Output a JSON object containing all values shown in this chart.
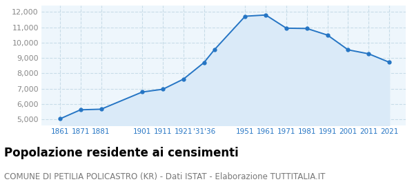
{
  "years": [
    1861,
    1871,
    1881,
    1901,
    1911,
    1921,
    1931,
    1936,
    1951,
    1961,
    1971,
    1981,
    1991,
    2001,
    2011,
    2021
  ],
  "population": [
    5030,
    5620,
    5660,
    6780,
    6960,
    7620,
    8700,
    9530,
    11720,
    11800,
    10940,
    10920,
    10490,
    9530,
    9270,
    8720
  ],
  "xtick_positions": [
    1861,
    1871,
    1881,
    1901,
    1911,
    1921,
    1931,
    1951,
    1961,
    1971,
    1981,
    1991,
    2001,
    2011,
    2021
  ],
  "xtick_labels": [
    "1861",
    "1871",
    "1881",
    "1901",
    "1911",
    "1921",
    "'31'36",
    "1951",
    "1961",
    "1971",
    "1981",
    "1991",
    "2001",
    "2011",
    "2021"
  ],
  "yticks": [
    5000,
    6000,
    7000,
    8000,
    9000,
    10000,
    11000,
    12000
  ],
  "ylim": [
    4600,
    12400
  ],
  "xlim": [
    1852,
    2029
  ],
  "line_color": "#2575c4",
  "fill_color": "#daeaf8",
  "background_color": "#eef6fc",
  "grid_color": "#c8dce8",
  "title": "Popolazione residente ai censimenti",
  "subtitle": "COMUNE DI PETILIA POLICASTRO (KR) - Dati ISTAT - Elaborazione TUTTITALIA.IT",
  "title_fontsize": 12,
  "subtitle_fontsize": 8.5,
  "tick_fontsize": 7.5,
  "ytick_fontsize": 8
}
